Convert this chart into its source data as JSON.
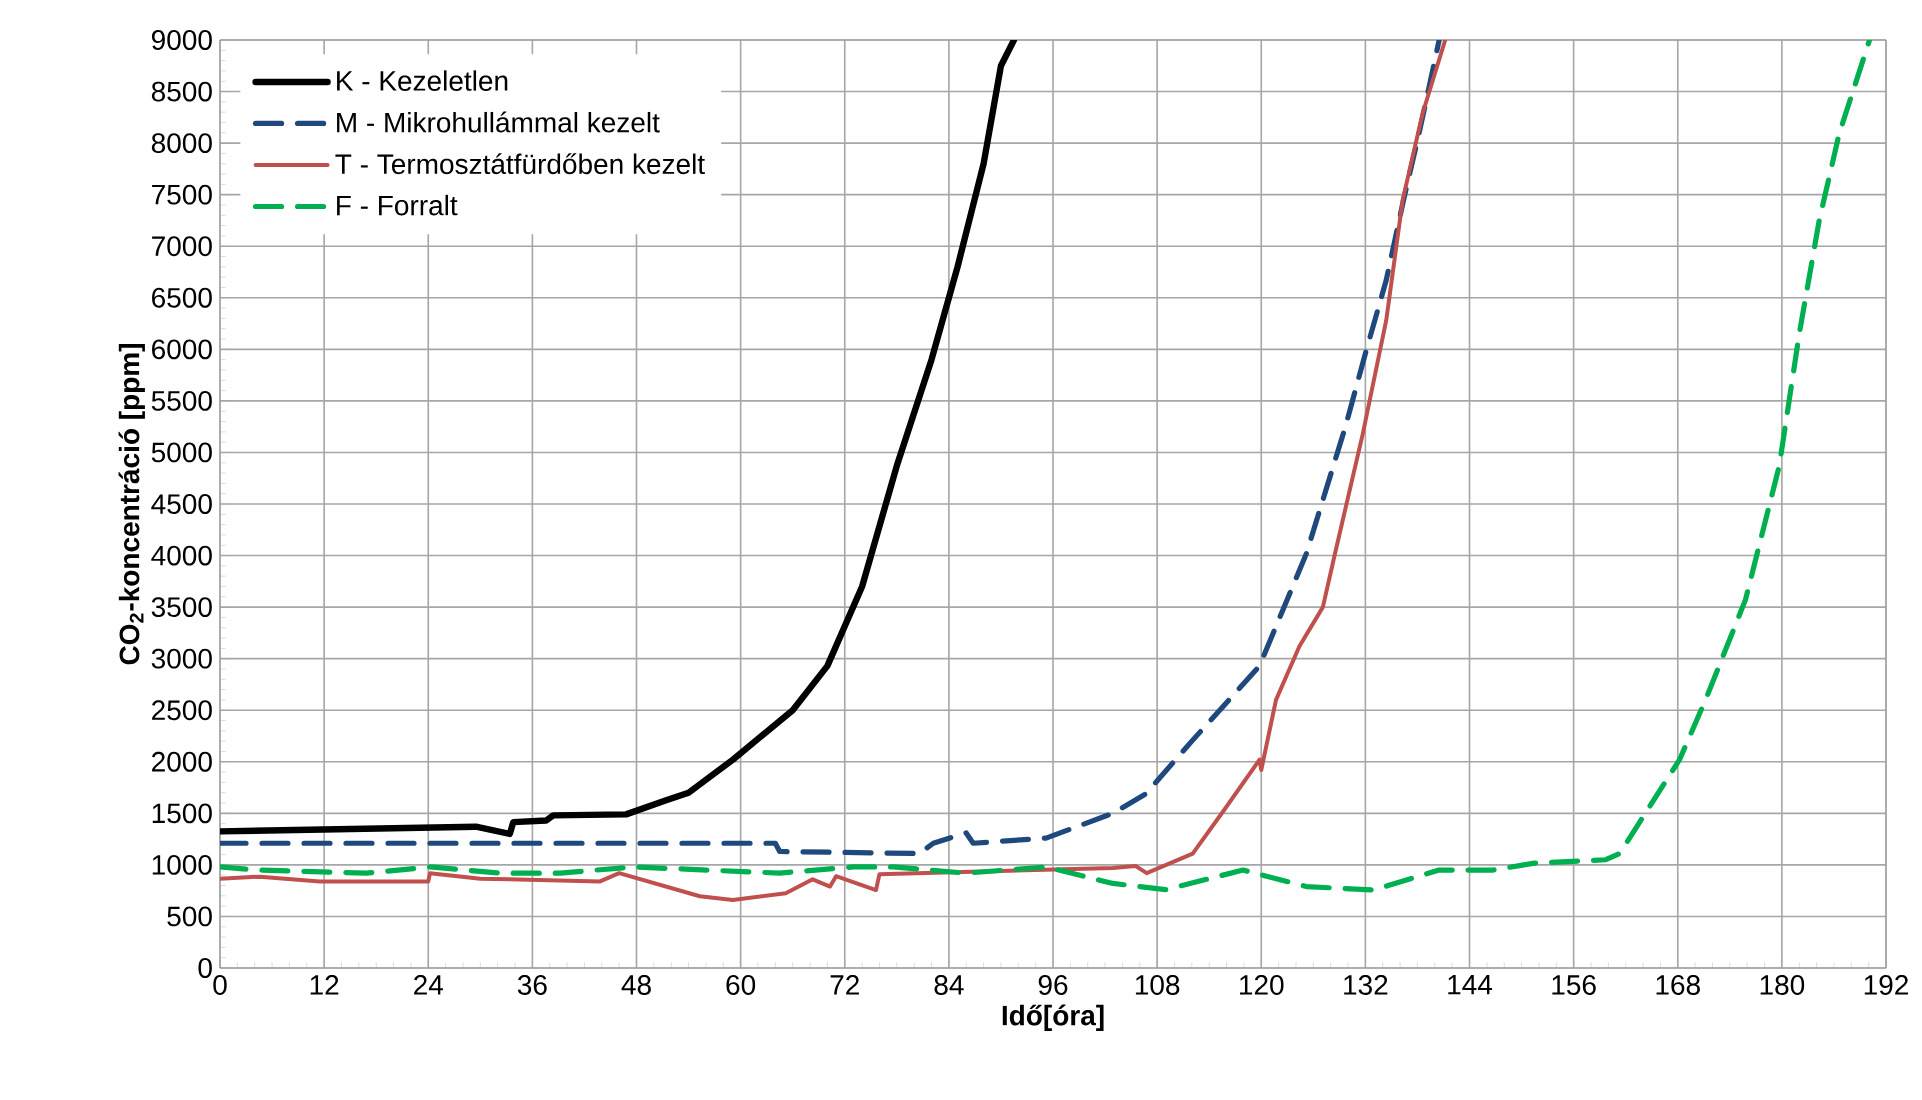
{
  "chart_data": {
    "type": "line",
    "xlabel": "Idő[óra]",
    "ylabel": "CO$_{2}$-koncentráció [ppm]",
    "xlim": [
      0,
      192
    ],
    "ylim": [
      0,
      9000
    ],
    "xticks": [
      0,
      12,
      24,
      36,
      48,
      60,
      72,
      84,
      96,
      108,
      120,
      132,
      144,
      156,
      168,
      180,
      192
    ],
    "yticks": [
      0,
      500,
      1000,
      1500,
      2000,
      2500,
      3000,
      3500,
      4000,
      4500,
      5000,
      5500,
      6000,
      6500,
      7000,
      7500,
      8000,
      8500,
      9000
    ],
    "grid": true,
    "legend": "top left",
    "series": [
      {
        "name": "K - Kezeletlen",
        "color": "#000000",
        "line_style": "solid",
        "x": [
          0,
          29.5,
          33.4,
          33.8,
          37.6,
          38.4,
          46.8,
          51.5,
          54,
          59.1,
          66,
          70,
          74,
          78,
          82,
          85,
          88,
          90,
          91.5
        ],
        "values": [
          1325,
          1370,
          1300,
          1415,
          1430,
          1480,
          1490,
          1630,
          1700,
          2020,
          2500,
          2930,
          3700,
          4870,
          5900,
          6800,
          7800,
          8750,
          9000
        ]
      },
      {
        "name": "M - Mikrohullámmal kezelt",
        "color": "#1f497d",
        "line_style": "dashed",
        "x": [
          0,
          64,
          64.5,
          80.6,
          82.2,
          86,
          86.8,
          95.2,
          102.9,
          106.7,
          112,
          119.8,
          125.2,
          129.7,
          132,
          134.4,
          136.4,
          138.2,
          140.1,
          140.5
        ],
        "values": [
          1210,
          1210,
          1130,
          1110,
          1210,
          1310,
          1210,
          1260,
          1500,
          1690,
          2200,
          2930,
          4020,
          5250,
          5960,
          6670,
          7450,
          8100,
          8840,
          9000
        ]
      },
      {
        "name": "T - Termosztátfürdőben kezelt",
        "color": "#c0504d",
        "line_style": "solid",
        "x": [
          0,
          4.6,
          11.5,
          24,
          24.2,
          30,
          43.8,
          46,
          55.3,
          59.1,
          65.2,
          68.3,
          70.3,
          71,
          75.6,
          76,
          102.9,
          105.5,
          106.8,
          112.1,
          115.7,
          119.8,
          120,
          121.7,
          124.4,
          127.1,
          128.5,
          131.7,
          134.4,
          136.3,
          138.6,
          141.2
        ],
        "values": [
          866,
          886,
          840,
          840,
          920,
          866,
          840,
          920,
          696,
          660,
          725,
          860,
          790,
          890,
          756,
          910,
          970,
          990,
          920,
          1110,
          1530,
          2020,
          1920,
          2600,
          3120,
          3500,
          4020,
          5180,
          6280,
          7450,
          8290,
          9000
        ]
      },
      {
        "name": "F - Forralt",
        "color": "#00b050",
        "line_style": "dashed",
        "x": [
          0,
          4.1,
          16.9,
          24.2,
          32.3,
          39.2,
          47.6,
          64.5,
          73,
          77.6,
          86,
          95.2,
          102.9,
          109,
          117.9,
          125.2,
          132.9,
          140.5,
          146.7,
          151.3,
          159.7,
          161.3,
          168.2,
          171.2,
          175.8,
          179.7,
          182,
          184.3,
          186.6,
          190.1
        ],
        "values": [
          980,
          950,
          920,
          980,
          920,
          920,
          980,
          920,
          980,
          980,
          920,
          980,
          820,
          760,
          950,
          790,
          756,
          950,
          950,
          1015,
          1050,
          1110,
          2020,
          2600,
          3570,
          4870,
          6150,
          7250,
          8090,
          9000
        ]
      }
    ]
  }
}
